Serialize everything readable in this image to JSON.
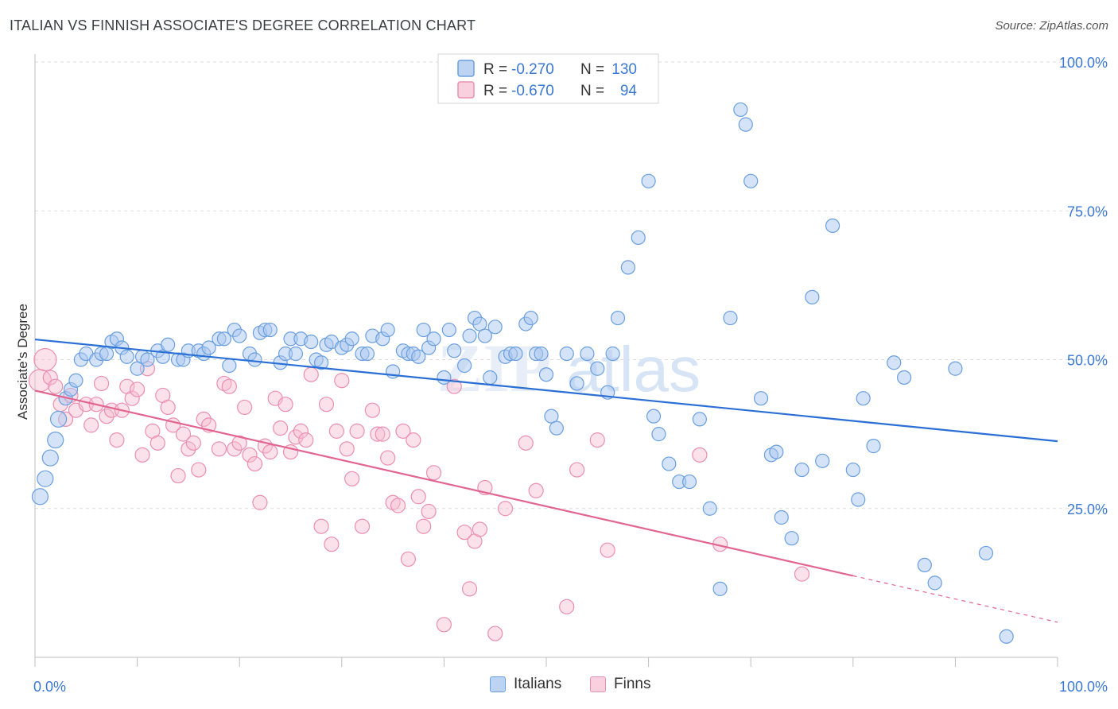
{
  "title": "ITALIAN VS FINNISH ASSOCIATE'S DEGREE CORRELATION CHART",
  "source": "Source: ZipAtlas.com",
  "watermark": {
    "zip": "ZIP",
    "atlas": "atlas"
  },
  "colors": {
    "blue_fill": "#a9c8ef",
    "blue_stroke": "#6a9fe0",
    "blue_line": "#2a6fd6",
    "pink_fill": "#f6bdd0",
    "pink_stroke": "#eb8fb0",
    "pink_line": "#e2658f",
    "axis_text": "#3b78d4",
    "grid": "#dcdcdc"
  },
  "legend": {
    "rows": [
      {
        "r_label": "R =",
        "r_value": "-0.270",
        "n_label": "N =",
        "n_value": "130",
        "series": "italians"
      },
      {
        "r_label": "R =",
        "r_value": "-0.670",
        "n_label": "N =",
        "n_value": "94",
        "series": "finns"
      }
    ]
  },
  "bottom_legend": {
    "italians": "Italians",
    "finns": "Finns"
  },
  "chart_data": {
    "type": "scatter",
    "title": "ITALIAN VS FINNISH ASSOCIATE'S DEGREE CORRELATION CHART",
    "xlabel": "",
    "ylabel": "Associate's Degree",
    "xlim": [
      0,
      100
    ],
    "ylim": [
      0,
      100
    ],
    "x_tick_labels": [
      "0.0%",
      "100.0%"
    ],
    "y_ticks": [
      25,
      50,
      75,
      100
    ],
    "y_tick_labels": [
      "25.0%",
      "50.0%",
      "75.0%",
      "100.0%"
    ],
    "grid": true,
    "legend_position": "top-center",
    "series": [
      {
        "name": "Italians",
        "color": "#6a9fe0",
        "trend": {
          "x": [
            0,
            100
          ],
          "y": [
            53.4,
            36.3
          ]
        },
        "points": [
          [
            0.5,
            27
          ],
          [
            1,
            30
          ],
          [
            1.5,
            33.5
          ],
          [
            2,
            36.5
          ],
          [
            2.3,
            40
          ],
          [
            3,
            43.5
          ],
          [
            3.5,
            45
          ],
          [
            4,
            46.5
          ],
          [
            4.5,
            50
          ],
          [
            5,
            51
          ],
          [
            6,
            50
          ],
          [
            6.5,
            51
          ],
          [
            7,
            51
          ],
          [
            7.5,
            53
          ],
          [
            8,
            53.5
          ],
          [
            8.5,
            52
          ],
          [
            9,
            50.5
          ],
          [
            10,
            48.5
          ],
          [
            10.5,
            50.5
          ],
          [
            11,
            50
          ],
          [
            12,
            51.5
          ],
          [
            12.5,
            50.5
          ],
          [
            13,
            52.5
          ],
          [
            14,
            50
          ],
          [
            14.5,
            50
          ],
          [
            15,
            51.5
          ],
          [
            16,
            51.5
          ],
          [
            16.5,
            51
          ],
          [
            17,
            52
          ],
          [
            18,
            53.5
          ],
          [
            18.5,
            53.5
          ],
          [
            19,
            49
          ],
          [
            19.5,
            55
          ],
          [
            20,
            54
          ],
          [
            21,
            51
          ],
          [
            21.5,
            50
          ],
          [
            22,
            54.5
          ],
          [
            22.5,
            55
          ],
          [
            23,
            55
          ],
          [
            24,
            49.5
          ],
          [
            24.5,
            51
          ],
          [
            25,
            53.5
          ],
          [
            25.5,
            51
          ],
          [
            26,
            53.5
          ],
          [
            27,
            53
          ],
          [
            27.5,
            50
          ],
          [
            28,
            49.5
          ],
          [
            28.5,
            52.5
          ],
          [
            29,
            53
          ],
          [
            30,
            52
          ],
          [
            30.5,
            52.5
          ],
          [
            31,
            53.5
          ],
          [
            32,
            51
          ],
          [
            32.5,
            51
          ],
          [
            33,
            54
          ],
          [
            34,
            53.5
          ],
          [
            34.5,
            55
          ],
          [
            35,
            48
          ],
          [
            36,
            51.5
          ],
          [
            36.5,
            51
          ],
          [
            37,
            51
          ],
          [
            37.5,
            50.5
          ],
          [
            38,
            55
          ],
          [
            38.5,
            52
          ],
          [
            39,
            53.5
          ],
          [
            40,
            47
          ],
          [
            40.5,
            55
          ],
          [
            41,
            51.5
          ],
          [
            42,
            49
          ],
          [
            42.5,
            54
          ],
          [
            43,
            57
          ],
          [
            43.5,
            56
          ],
          [
            44,
            54
          ],
          [
            44.5,
            47
          ],
          [
            45,
            55.5
          ],
          [
            46,
            50.5
          ],
          [
            46.5,
            51
          ],
          [
            47,
            51
          ],
          [
            48,
            56
          ],
          [
            48.5,
            57
          ],
          [
            49,
            51
          ],
          [
            49.5,
            51
          ],
          [
            50,
            47.5
          ],
          [
            50.5,
            40.5
          ],
          [
            51,
            38.5
          ],
          [
            52,
            51
          ],
          [
            53,
            46
          ],
          [
            54,
            51
          ],
          [
            55,
            48.5
          ],
          [
            56,
            44.5
          ],
          [
            56.5,
            51
          ],
          [
            57,
            57
          ],
          [
            58,
            65.5
          ],
          [
            59,
            70.5
          ],
          [
            60,
            80
          ],
          [
            60.5,
            40.5
          ],
          [
            61,
            37.5
          ],
          [
            62,
            32.5
          ],
          [
            63,
            29.5
          ],
          [
            64,
            29.5
          ],
          [
            65,
            40
          ],
          [
            66,
            25
          ],
          [
            67,
            11.5
          ],
          [
            68,
            57
          ],
          [
            69,
            92
          ],
          [
            69.5,
            89.5
          ],
          [
            70,
            80
          ],
          [
            71,
            43.5
          ],
          [
            72,
            34
          ],
          [
            72.5,
            34.5
          ],
          [
            73,
            23.5
          ],
          [
            74,
            20
          ],
          [
            75,
            31.5
          ],
          [
            76,
            60.5
          ],
          [
            77,
            33
          ],
          [
            78,
            72.5
          ],
          [
            80,
            31.5
          ],
          [
            80.5,
            26.5
          ],
          [
            81,
            43.5
          ],
          [
            82,
            35.5
          ],
          [
            84,
            49.5
          ],
          [
            85,
            47
          ],
          [
            87,
            15.5
          ],
          [
            88,
            12.5
          ],
          [
            90,
            48.5
          ],
          [
            93,
            17.5
          ],
          [
            95,
            3.5
          ]
        ]
      },
      {
        "name": "Finns",
        "color": "#eb8fb0",
        "trend": {
          "x": [
            0,
            80
          ],
          "y": [
            44.8,
            13.7
          ]
        },
        "trend_extension": {
          "x": [
            80,
            100
          ],
          "y": [
            13.7,
            5.9
          ]
        },
        "points": [
          [
            0.5,
            46.5
          ],
          [
            1,
            50
          ],
          [
            1.5,
            47
          ],
          [
            2,
            45.5
          ],
          [
            2.5,
            42.5
          ],
          [
            3,
            40
          ],
          [
            3.5,
            44
          ],
          [
            4,
            41.5
          ],
          [
            5,
            42.5
          ],
          [
            5.5,
            39
          ],
          [
            6,
            42.5
          ],
          [
            6.5,
            46
          ],
          [
            7,
            40.5
          ],
          [
            7.5,
            41.5
          ],
          [
            8,
            36.5
          ],
          [
            8.5,
            41.5
          ],
          [
            9,
            45.5
          ],
          [
            9.5,
            43.5
          ],
          [
            10,
            45
          ],
          [
            10.5,
            34
          ],
          [
            11,
            48.5
          ],
          [
            11.5,
            38
          ],
          [
            12,
            36
          ],
          [
            12.5,
            44
          ],
          [
            13,
            42
          ],
          [
            13.5,
            39
          ],
          [
            14,
            30.5
          ],
          [
            14.5,
            37.5
          ],
          [
            15,
            35
          ],
          [
            15.5,
            36
          ],
          [
            16,
            31.5
          ],
          [
            16.5,
            40
          ],
          [
            17,
            39
          ],
          [
            18,
            35
          ],
          [
            18.5,
            46
          ],
          [
            19,
            45.5
          ],
          [
            19.5,
            35
          ],
          [
            20,
            36
          ],
          [
            20.5,
            42
          ],
          [
            21,
            34
          ],
          [
            21.5,
            32.5
          ],
          [
            22,
            26
          ],
          [
            22.5,
            35.5
          ],
          [
            23,
            34.5
          ],
          [
            23.5,
            43.5
          ],
          [
            24,
            38.5
          ],
          [
            24.5,
            42.5
          ],
          [
            25,
            34.5
          ],
          [
            25.5,
            37
          ],
          [
            26,
            38
          ],
          [
            26.5,
            36.5
          ],
          [
            27,
            47.5
          ],
          [
            28,
            22
          ],
          [
            28.5,
            42.5
          ],
          [
            29,
            19
          ],
          [
            29.5,
            38
          ],
          [
            30,
            46.5
          ],
          [
            30.5,
            35
          ],
          [
            31,
            30
          ],
          [
            31.5,
            38
          ],
          [
            32,
            22
          ],
          [
            33,
            41.5
          ],
          [
            33.5,
            37.5
          ],
          [
            34,
            37.5
          ],
          [
            34.5,
            33.5
          ],
          [
            35,
            26
          ],
          [
            35.5,
            25.5
          ],
          [
            36,
            38
          ],
          [
            36.5,
            16.5
          ],
          [
            37,
            36.5
          ],
          [
            37.5,
            27
          ],
          [
            38,
            22
          ],
          [
            38.5,
            24.5
          ],
          [
            39,
            31
          ],
          [
            40,
            5.5
          ],
          [
            41,
            45.5
          ],
          [
            42,
            21
          ],
          [
            42.5,
            11.5
          ],
          [
            43,
            19.5
          ],
          [
            43.5,
            21.5
          ],
          [
            44,
            28.5
          ],
          [
            45,
            4
          ],
          [
            46,
            25
          ],
          [
            48,
            36
          ],
          [
            49,
            28
          ],
          [
            52,
            8.5
          ],
          [
            53,
            31.5
          ],
          [
            55,
            36.5
          ],
          [
            56,
            18
          ],
          [
            65,
            34
          ],
          [
            67,
            19
          ],
          [
            75,
            14
          ]
        ]
      }
    ]
  }
}
